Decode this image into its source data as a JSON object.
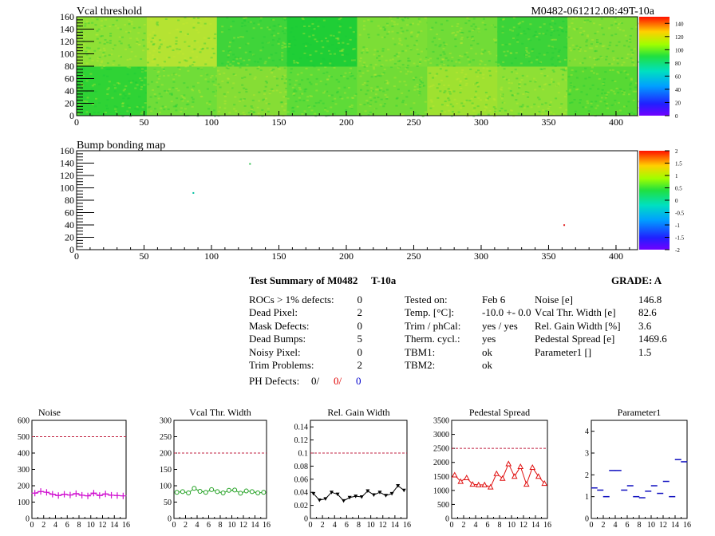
{
  "header": {
    "vcal_title": "Vcal threshold",
    "module_id": "M0482-061212.08:49T-10a",
    "bump_title": "Bump bonding map"
  },
  "map_axes": {
    "x_ticks": [
      "0",
      "50",
      "100",
      "150",
      "200",
      "250",
      "300",
      "350",
      "400"
    ],
    "y_ticks": [
      "0",
      "20",
      "40",
      "60",
      "80",
      "100",
      "120",
      "140",
      "160"
    ]
  },
  "vcal_scale": {
    "labels": [
      "0",
      "20",
      "40",
      "60",
      "80",
      "100",
      "120",
      "140"
    ],
    "range": [
      0,
      150
    ]
  },
  "bump_scale": {
    "labels": [
      "-2",
      "-1.5",
      "-1",
      "-0.5",
      "0",
      "0.5",
      "1",
      "1.5",
      "2"
    ],
    "range": [
      -2,
      2
    ]
  },
  "vcal_map": {
    "bands": [
      {
        "x0": 0,
        "x1": 52,
        "y0": 0,
        "y1": 80,
        "color": "#2fd335"
      },
      {
        "x0": 52,
        "x1": 104,
        "y0": 0,
        "y1": 80,
        "color": "#70dd38"
      },
      {
        "x0": 104,
        "x1": 156,
        "y0": 0,
        "y1": 80,
        "color": "#86dd35"
      },
      {
        "x0": 156,
        "x1": 208,
        "y0": 0,
        "y1": 80,
        "color": "#5edb38"
      },
      {
        "x0": 208,
        "x1": 260,
        "y0": 0,
        "y1": 80,
        "color": "#71dc36"
      },
      {
        "x0": 260,
        "x1": 312,
        "y0": 0,
        "y1": 80,
        "color": "#9fe130"
      },
      {
        "x0": 312,
        "x1": 364,
        "y0": 0,
        "y1": 80,
        "color": "#8ee035"
      },
      {
        "x0": 364,
        "x1": 416,
        "y0": 0,
        "y1": 80,
        "color": "#57d934"
      },
      {
        "x0": 0,
        "x1": 52,
        "y0": 80,
        "y1": 160,
        "color": "#8fe035"
      },
      {
        "x0": 52,
        "x1": 104,
        "y0": 80,
        "y1": 160,
        "color": "#b5e332"
      },
      {
        "x0": 104,
        "x1": 156,
        "y0": 80,
        "y1": 160,
        "color": "#3fd43a"
      },
      {
        "x0": 156,
        "x1": 208,
        "y0": 80,
        "y1": 160,
        "color": "#1fce36"
      },
      {
        "x0": 208,
        "x1": 260,
        "y0": 80,
        "y1": 160,
        "color": "#7cde36"
      },
      {
        "x0": 260,
        "x1": 312,
        "y0": 80,
        "y1": 160,
        "color": "#71dc37"
      },
      {
        "x0": 312,
        "x1": 364,
        "y0": 80,
        "y1": 160,
        "color": "#3bd339"
      },
      {
        "x0": 364,
        "x1": 416,
        "y0": 80,
        "y1": 160,
        "color": "#7edd35"
      }
    ]
  },
  "bump_map": {
    "points": [
      {
        "x": 86,
        "y": 93,
        "color": "#00c0a0"
      },
      {
        "x": 128,
        "y": 140,
        "color": "#30c050"
      },
      {
        "x": 361,
        "y": 41,
        "color": "#e02020"
      }
    ]
  },
  "summary": {
    "title": "Test Summary of M0482",
    "temp_tag": "T-10a",
    "grade_label": "GRADE:  A",
    "left_rows": [
      {
        "label": "ROCs > 1% defects:",
        "value": "0"
      },
      {
        "label": "Dead Pixel:",
        "value": "2"
      },
      {
        "label": "Mask Defects:",
        "value": "0"
      },
      {
        "label": "Dead Bumps:",
        "value": "5"
      },
      {
        "label": "Noisy Pixel:",
        "value": "0"
      },
      {
        "label": "Trim Problems:",
        "value": "2"
      }
    ],
    "ph_label": "PH Defects:",
    "ph_values": [
      {
        "text": "0/",
        "color": "#000000"
      },
      {
        "text": "0/",
        "color": "#e00000"
      },
      {
        "text": "0",
        "color": "#0000cc"
      }
    ],
    "mid_rows": [
      {
        "label": "Tested on:",
        "value": "Feb 6"
      },
      {
        "label": "Temp. [°C]:",
        "value": "-10.0 +- 0.0"
      },
      {
        "label": "Trim / phCal:",
        "value": "yes / yes"
      },
      {
        "label": "Therm. cycl.:",
        "value": "yes"
      },
      {
        "label": "TBM1:",
        "value": "ok"
      },
      {
        "label": "TBM2:",
        "value": "ok"
      }
    ],
    "right_rows": [
      {
        "label": "Noise [e]",
        "value": "146.8"
      },
      {
        "label": "Vcal Thr. Width [e]",
        "value": "82.6"
      },
      {
        "label": "Rel. Gain Width [%]",
        "value": "3.6"
      },
      {
        "label": "Pedestal Spread [e]",
        "value": "1469.6"
      },
      {
        "label": "Parameter1 []",
        "value": "1.5"
      }
    ]
  },
  "chart_data": [
    {
      "type": "line",
      "title": "Noise",
      "x": [
        0,
        1,
        2,
        3,
        4,
        5,
        6,
        7,
        8,
        9,
        10,
        11,
        12,
        13,
        14,
        15
      ],
      "values": [
        155,
        165,
        160,
        148,
        140,
        148,
        143,
        152,
        142,
        138,
        155,
        140,
        150,
        142,
        140,
        138
      ],
      "ylim": [
        0,
        600
      ],
      "yticks": [
        0,
        100,
        200,
        300,
        400,
        500,
        600
      ],
      "ytick_labels": [
        "0",
        "100",
        "200",
        "300",
        "400",
        "500",
        "600"
      ],
      "threshold": 500,
      "color": "#d010d0",
      "marker": "plus"
    },
    {
      "type": "line",
      "title": "Vcal Thr. Width",
      "x": [
        0,
        1,
        2,
        3,
        4,
        5,
        6,
        7,
        8,
        9,
        10,
        11,
        12,
        13,
        14,
        15
      ],
      "values": [
        80,
        82,
        78,
        92,
        83,
        80,
        88,
        82,
        78,
        86,
        87,
        77,
        84,
        82,
        78,
        80
      ],
      "ylim": [
        0,
        300
      ],
      "yticks": [
        0,
        50,
        100,
        150,
        200,
        250,
        300
      ],
      "ytick_labels": [
        "0",
        "50",
        "100",
        "150",
        "200",
        "250",
        "300"
      ],
      "threshold": 200,
      "color": "#20a020",
      "marker": "circle"
    },
    {
      "type": "line",
      "title": "Rel. Gain Width",
      "x": [
        0,
        1,
        2,
        3,
        4,
        5,
        6,
        7,
        8,
        9,
        10,
        11,
        12,
        13,
        14,
        15
      ],
      "values": [
        0.038,
        0.028,
        0.03,
        0.04,
        0.037,
        0.027,
        0.032,
        0.034,
        0.033,
        0.042,
        0.036,
        0.04,
        0.035,
        0.038,
        0.05,
        0.043
      ],
      "ylim": [
        0,
        0.15
      ],
      "yticks": [
        0,
        0.02,
        0.04,
        0.06,
        0.08,
        0.1,
        0.12,
        0.14
      ],
      "ytick_labels": [
        "0",
        "0.02",
        "0.04",
        "0.06",
        "0.08",
        "0.1",
        "0.12",
        "0.14"
      ],
      "threshold": 0.1,
      "color": "#000000",
      "marker": "triangle-down"
    },
    {
      "type": "line",
      "title": "Pedestal Spread",
      "x": [
        0,
        1,
        2,
        3,
        4,
        5,
        6,
        7,
        8,
        9,
        10,
        11,
        12,
        13,
        14,
        15
      ],
      "values": [
        1550,
        1320,
        1450,
        1220,
        1200,
        1200,
        1120,
        1600,
        1430,
        1950,
        1500,
        1850,
        1220,
        1820,
        1500,
        1250
      ],
      "ylim": [
        0,
        3500
      ],
      "yticks": [
        0,
        500,
        1000,
        1500,
        2000,
        2500,
        3000,
        3500
      ],
      "ytick_labels": [
        "0",
        "500",
        "1000",
        "1500",
        "2000",
        "2500",
        "3000",
        "3500"
      ],
      "threshold": 2500,
      "color": "#e01010",
      "marker": "triangle"
    },
    {
      "type": "scatter",
      "title": "Parameter1",
      "x": [
        0,
        1,
        2,
        3,
        4,
        5,
        6,
        7,
        8,
        9,
        10,
        11,
        12,
        13,
        14,
        15
      ],
      "values": [
        1.4,
        1.3,
        1.0,
        2.2,
        2.2,
        1.3,
        1.5,
        1.0,
        0.95,
        1.25,
        1.5,
        1.15,
        1.7,
        1.0,
        2.7,
        2.6
      ],
      "ylim": [
        0,
        4.5
      ],
      "yticks": [
        0,
        1,
        2,
        3,
        4
      ],
      "ytick_labels": [
        "0",
        "1",
        "2",
        "3",
        "4"
      ],
      "threshold": null,
      "color": "#1010c0",
      "marker": "hbar"
    }
  ]
}
